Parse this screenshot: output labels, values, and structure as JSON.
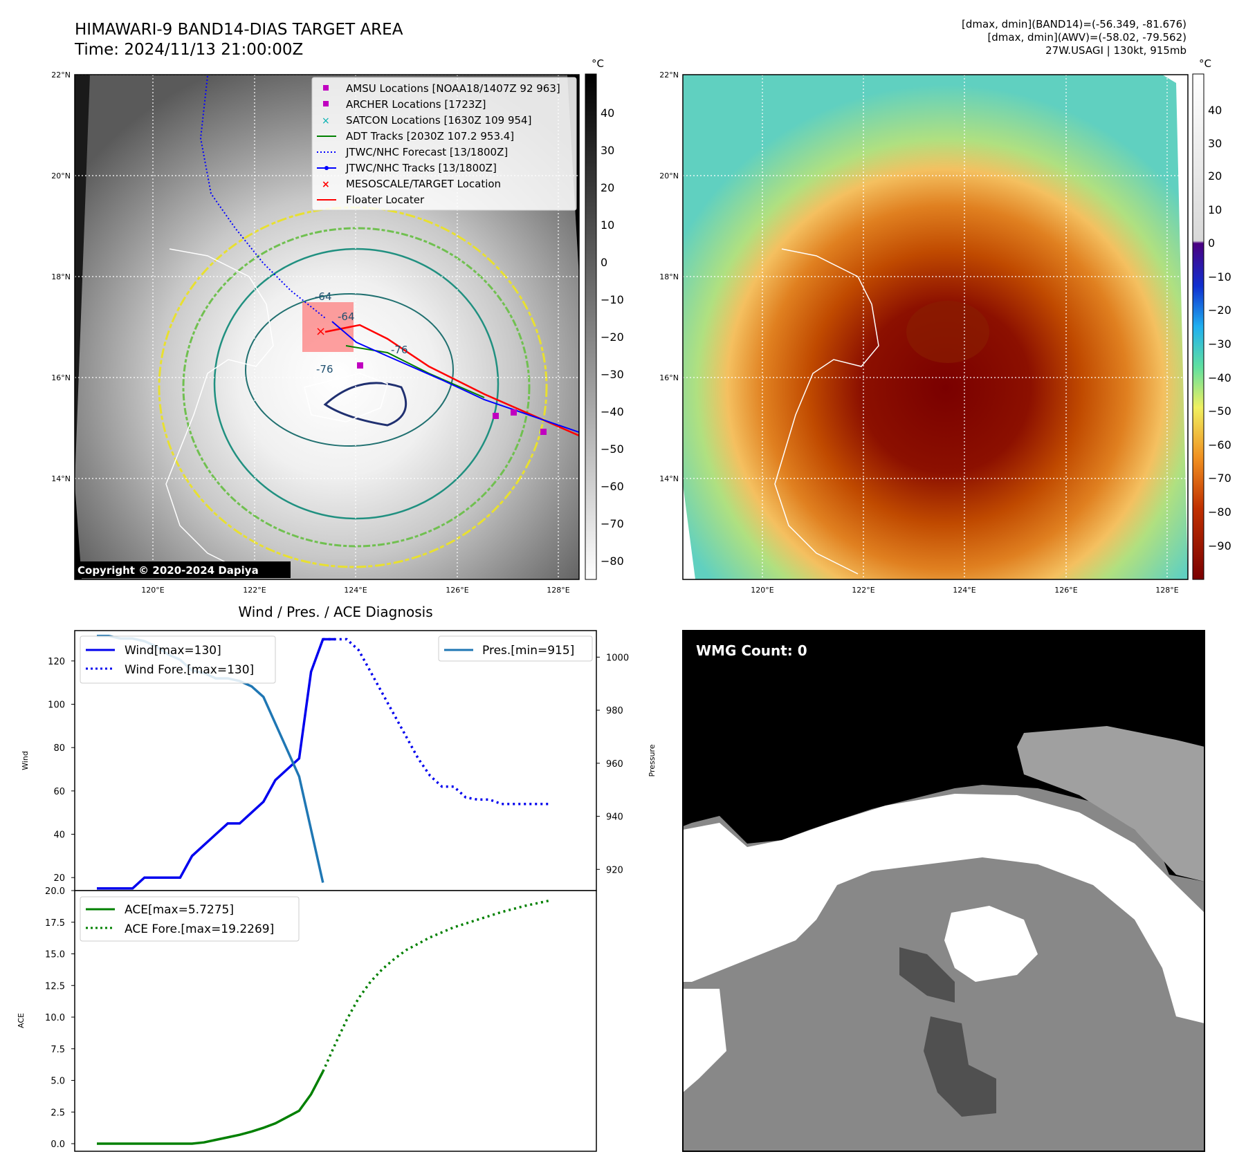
{
  "header": {
    "title_line1": "HIMAWARI-9 BAND14-DIAS TARGET AREA",
    "title_line2": "Time: 2024/11/13 21:00:00Z",
    "info_line1": "[dmax, dmin](BAND14)=(-56.349, -81.676)",
    "info_line2": "[dmax, dmin](AWV)=(-58.02, -79.562)",
    "info_line3": "27W.USAGI | 130kt, 915mb"
  },
  "map_panel": {
    "lat_labels": [
      "22°N",
      "20°N",
      "18°N",
      "16°N",
      "14°N"
    ],
    "lon_labels": [
      "120°E",
      "122°E",
      "124°E",
      "126°E",
      "128°E"
    ],
    "copyright": "Copyright © 2020-2024 Dapiya",
    "contour_labels": [
      "-64",
      "-64",
      "-76",
      "-76"
    ],
    "legend": [
      {
        "label": "AMSU Locations [NOAA18/1407Z 92 963]",
        "color": "#c000c0",
        "marker": "square"
      },
      {
        "label": "ARCHER Locations [1723Z]",
        "color": "#c000c0",
        "marker": "square"
      },
      {
        "label": "SATCON Locations [1630Z 109 954]",
        "color": "#00b0b0",
        "marker": "x"
      },
      {
        "label": "ADT Tracks [2030Z 107.2 953.4]",
        "color": "#008000",
        "marker": "line"
      },
      {
        "label": "JTWC/NHC Forecast [13/1800Z]",
        "color": "#0000ff",
        "marker": "dotted"
      },
      {
        "label": "JTWC/NHC Tracks [13/1800Z]",
        "color": "#0000ff",
        "marker": "line-dot"
      },
      {
        "label": "MESOSCALE/TARGET Location",
        "color": "#ff0000",
        "marker": "x"
      },
      {
        "label": "Floater Locater",
        "color": "#ff0000",
        "marker": "line"
      }
    ]
  },
  "colorbar_gray": {
    "unit": "°C",
    "ticks": [
      "40",
      "30",
      "20",
      "10",
      "0",
      "−10",
      "−20",
      "−30",
      "−40",
      "−50",
      "−60",
      "−70",
      "−80"
    ]
  },
  "colorbar_color": {
    "unit": "°C",
    "ticks": [
      "40",
      "30",
      "20",
      "10",
      "0",
      "−10",
      "−20",
      "−30",
      "−40",
      "−50",
      "−60",
      "−70",
      "−80",
      "−90"
    ]
  },
  "wmg_panel": {
    "label": "WMG Count: 0"
  },
  "chart_data": [
    {
      "type": "line",
      "title": "Wind / Pres. / ACE Diagnosis",
      "ylabel": "Wind",
      "ylabel_right": "Pressure",
      "ylim": [
        14,
        134
      ],
      "ylim_right": [
        912,
        1010
      ],
      "yticks": [
        "20",
        "40",
        "60",
        "80",
        "100",
        "120"
      ],
      "yticks_right": [
        "920",
        "940",
        "960",
        "980",
        "1000"
      ],
      "x_range": [
        0,
        40
      ],
      "series": [
        {
          "name": "Wind[max=130]",
          "style": "solid",
          "color": "#0000ee",
          "axis": "left",
          "x": [
            0,
            2,
            3,
            4,
            5,
            6,
            7,
            8,
            9,
            10,
            11,
            12,
            13,
            14,
            15,
            16,
            17,
            18,
            19,
            20
          ],
          "values": [
            15,
            15,
            15,
            20,
            20,
            20,
            20,
            30,
            35,
            40,
            45,
            45,
            50,
            55,
            65,
            70,
            75,
            115,
            130,
            130
          ]
        },
        {
          "name": "Wind Fore.[max=130]",
          "style": "dotted",
          "color": "#0000ee",
          "axis": "left",
          "x": [
            19,
            20,
            21,
            22,
            23,
            24,
            25,
            26,
            27,
            28,
            29,
            30,
            31,
            32,
            33,
            34,
            35,
            36,
            37,
            38
          ],
          "values": [
            130,
            130,
            130,
            125,
            115,
            105,
            95,
            85,
            75,
            67,
            62,
            62,
            57,
            56,
            56,
            54,
            54,
            54,
            54,
            54
          ]
        },
        {
          "name": "Pres.[min=915]",
          "style": "solid",
          "color": "#1f77b4",
          "axis": "right",
          "x": [
            0,
            1,
            2,
            3,
            4,
            5,
            6,
            7,
            8,
            9,
            10,
            11,
            12,
            13,
            14,
            15,
            16,
            17,
            18,
            19
          ],
          "values": [
            1008,
            1008,
            1007,
            1007,
            1006,
            1004,
            1001,
            999,
            995,
            994,
            992,
            992,
            991,
            989,
            985,
            975,
            965,
            955,
            935,
            915
          ]
        }
      ],
      "legend_left": [
        "Wind[max=130]",
        "Wind Fore.[max=130]"
      ],
      "legend_right": [
        "Pres.[min=915]"
      ]
    },
    {
      "type": "line",
      "ylabel": "ACE",
      "ylim": [
        -0.6,
        20.0
      ],
      "yticks": [
        "0.0",
        "2.5",
        "5.0",
        "7.5",
        "10.0",
        "12.5",
        "15.0",
        "17.5",
        "20.0"
      ],
      "x_range": [
        0,
        40
      ],
      "series": [
        {
          "name": "ACE[max=5.7275]",
          "style": "solid",
          "color": "#008000",
          "x": [
            0,
            2,
            4,
            6,
            7,
            8,
            9,
            10,
            11,
            12,
            13,
            14,
            15,
            16,
            17,
            18,
            19
          ],
          "values": [
            0,
            0,
            0,
            0,
            0,
            0,
            0.1,
            0.3,
            0.5,
            0.7,
            0.95,
            1.25,
            1.6,
            2.1,
            2.6,
            3.9,
            5.7
          ]
        },
        {
          "name": "ACE Fore.[max=19.2269]",
          "style": "dotted",
          "color": "#008000",
          "x": [
            19,
            20,
            21,
            22,
            23,
            24,
            25,
            26,
            27,
            28,
            30,
            32,
            34,
            36,
            38
          ],
          "values": [
            5.7,
            7.8,
            9.8,
            11.5,
            12.8,
            13.8,
            14.6,
            15.3,
            15.8,
            16.3,
            17.1,
            17.7,
            18.3,
            18.8,
            19.2
          ]
        }
      ],
      "legend": [
        "ACE[max=5.7275]",
        "ACE Fore.[max=19.2269]"
      ]
    }
  ]
}
